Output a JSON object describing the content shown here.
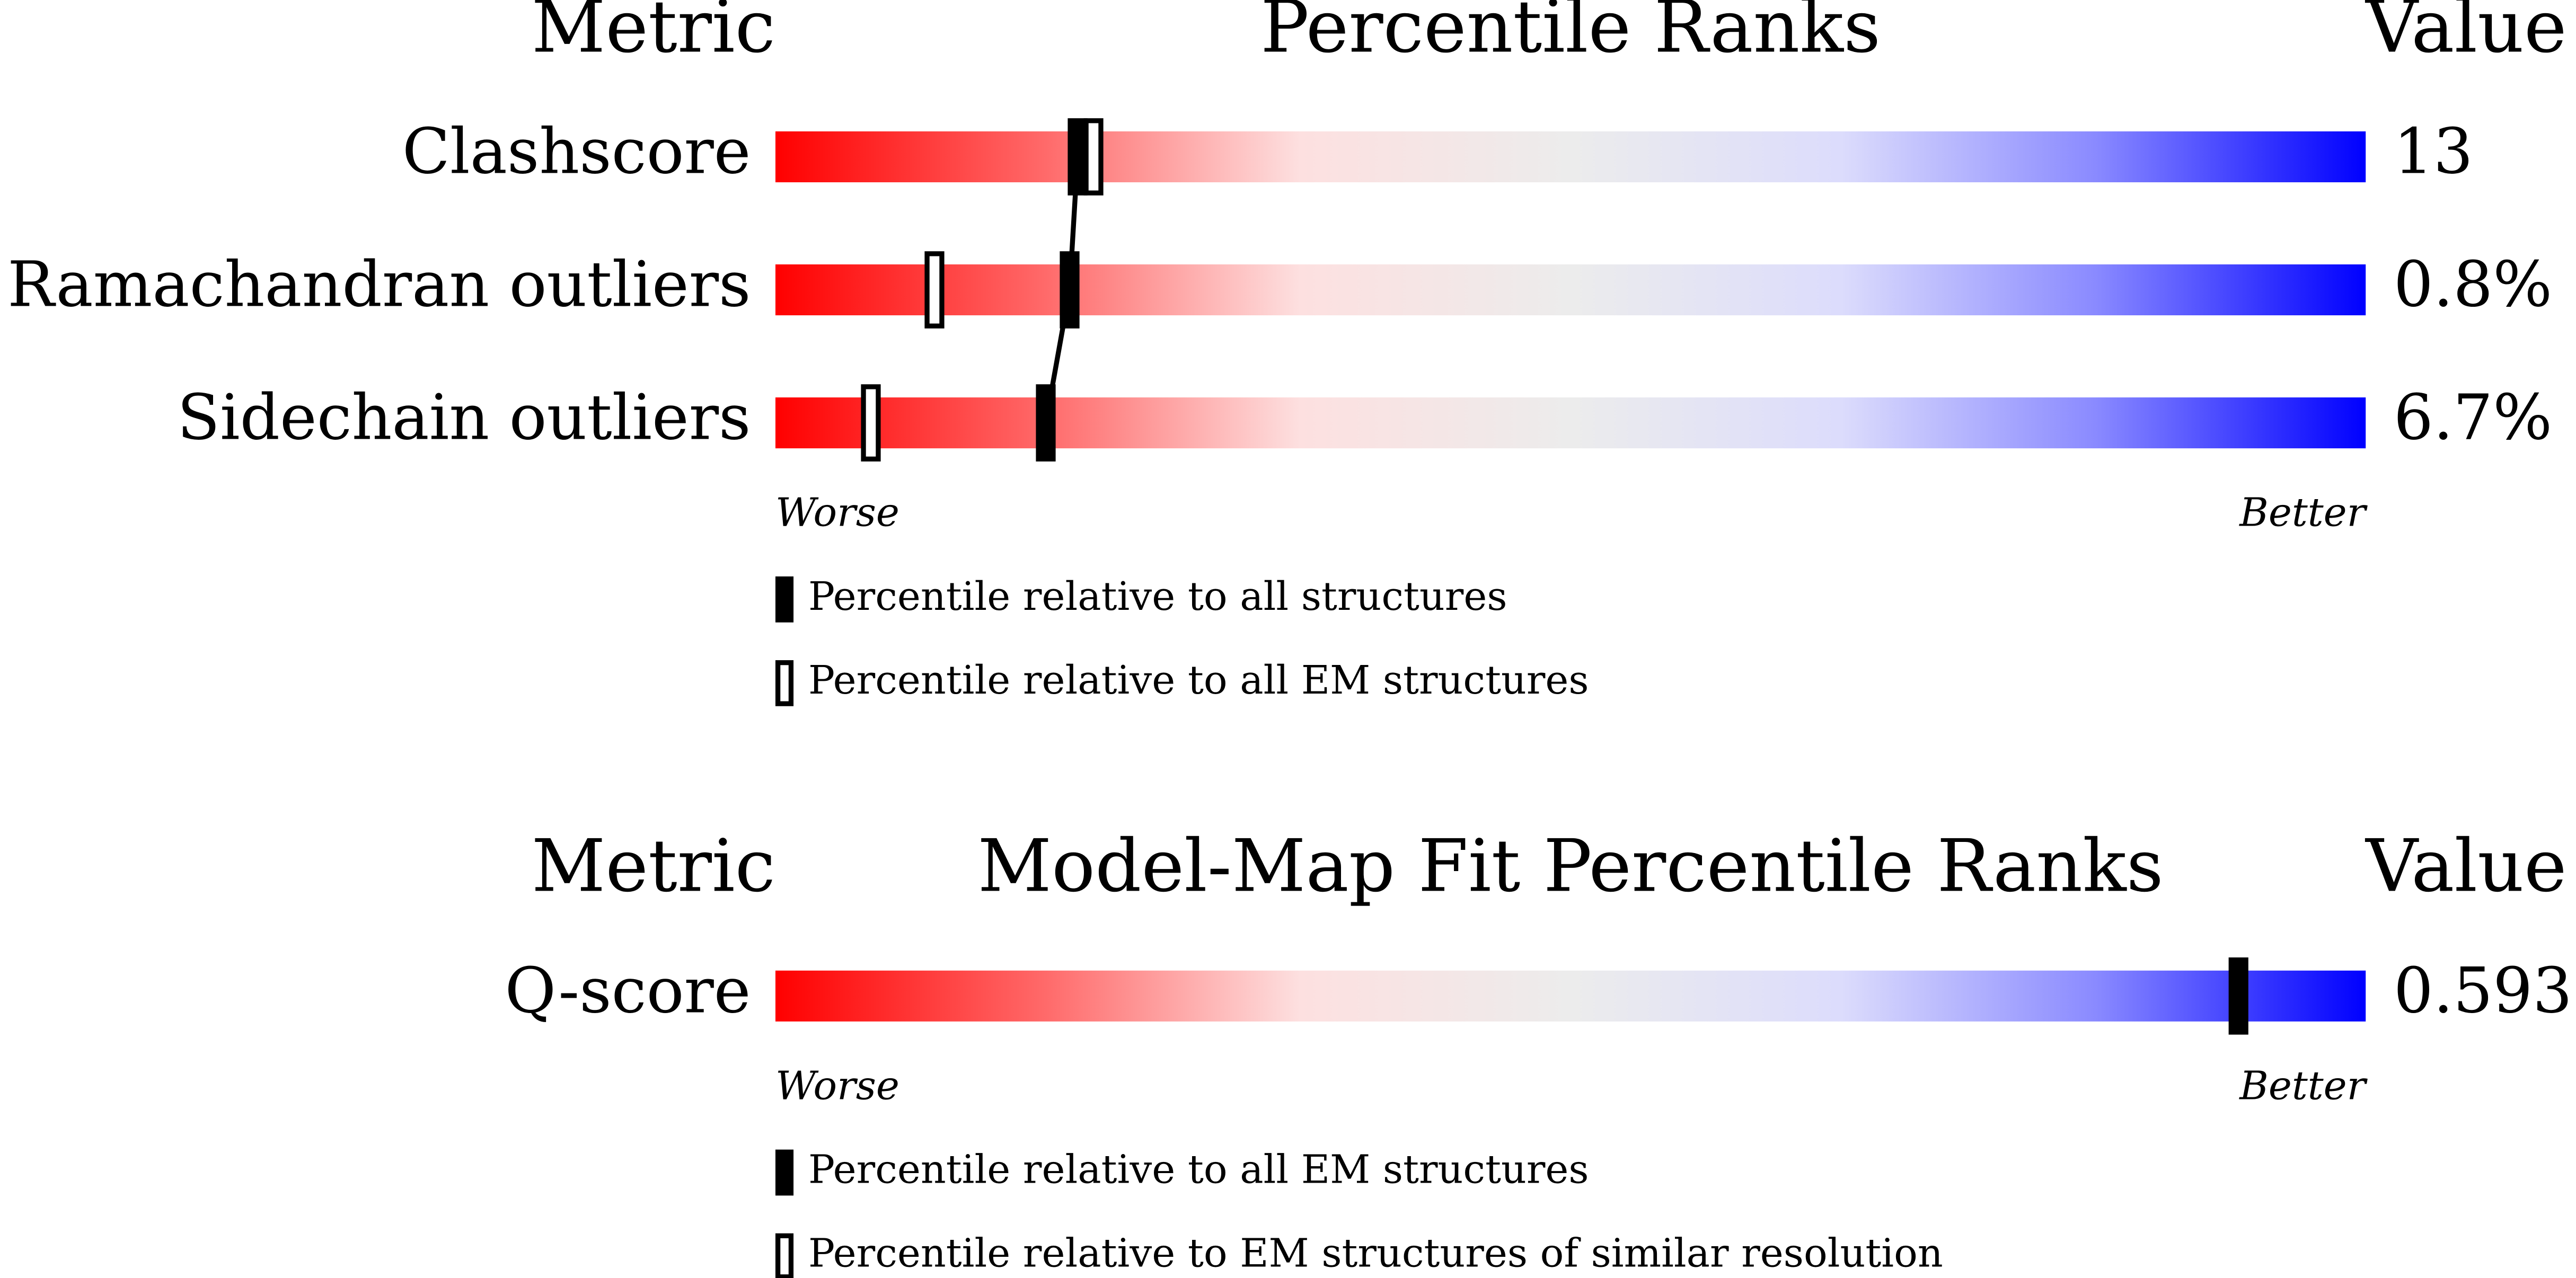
{
  "chart_data": [
    {
      "type": "percentile",
      "metric_header": "Metric",
      "title": "Percentile Ranks",
      "value_header": "Value",
      "categories": [
        "Clashscore",
        "Ramachandran outliers",
        "Sidechain outliers"
      ],
      "metric_values": [
        "13",
        "0.8%",
        "6.7%"
      ],
      "series": [
        {
          "name": "Percentile relative to all structures",
          "style": "filled",
          "color": "#000000",
          "values": [
            19,
            18.5,
            17
          ]
        },
        {
          "name": "Percentile relative to all EM structures",
          "style": "open",
          "color": "#000000",
          "values": [
            20,
            10,
            6
          ]
        }
      ],
      "connect": "filled",
      "xlim": [
        0,
        100
      ],
      "low_label": "Worse",
      "high_label": "Better"
    },
    {
      "type": "percentile",
      "metric_header": "Metric",
      "title": "Model-Map Fit Percentile Ranks",
      "value_header": "Value",
      "categories": [
        "Q-score"
      ],
      "metric_values": [
        "0.593"
      ],
      "series": [
        {
          "name": "Percentile relative to all EM structures",
          "style": "filled",
          "color": "#000000",
          "values": [
            92
          ]
        },
        {
          "name": "Percentile relative to EM structures of similar resolution",
          "style": "open",
          "color": "#000000",
          "values": [
            null
          ]
        }
      ],
      "xlim": [
        0,
        100
      ],
      "low_label": "Worse",
      "high_label": "Better"
    }
  ]
}
